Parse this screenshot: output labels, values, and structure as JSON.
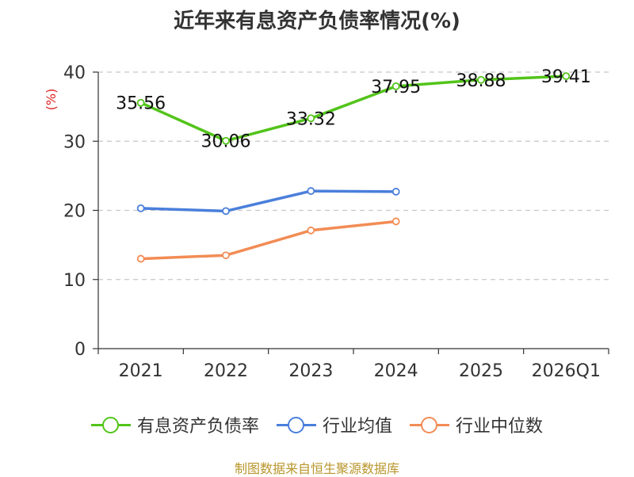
{
  "chart_data": {
    "type": "line",
    "title": "近年来有息资产负债率情况(%)",
    "ylabel": "(%)",
    "xlabel": "",
    "categories": [
      "2021",
      "2022",
      "2023",
      "2024",
      "2025",
      "2026Q1"
    ],
    "ylim": [
      0,
      40
    ],
    "yticks": [
      0,
      10,
      20,
      30,
      40
    ],
    "grid": true,
    "legend_position": "bottom",
    "series": [
      {
        "name": "有息资产负债率",
        "color": "#52c41a",
        "values": [
          35.56,
          30.06,
          33.32,
          37.95,
          38.88,
          39.41
        ],
        "labels": [
          "35.56",
          "30.06",
          "33.32",
          "37.95",
          "38.88",
          "39.41"
        ]
      },
      {
        "name": "行业均值",
        "color": "#4a7fdb",
        "values": [
          20.3,
          19.9,
          22.8,
          22.7,
          null,
          null
        ]
      },
      {
        "name": "行业中位数",
        "color": "#f28c55",
        "values": [
          13.0,
          13.5,
          17.1,
          18.4,
          null,
          null
        ]
      }
    ],
    "source": "制图数据来自恒生聚源数据库"
  }
}
